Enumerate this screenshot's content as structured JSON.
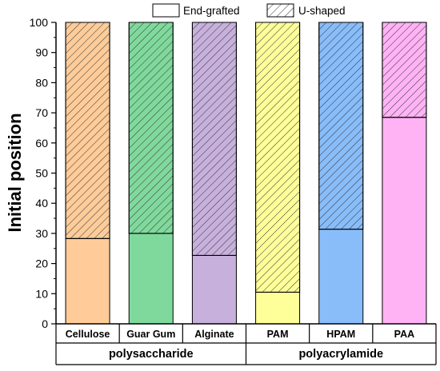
{
  "chart_data": {
    "type": "bar",
    "stacked": true,
    "ylabel": "Initial position",
    "ylim": [
      0,
      100
    ],
    "yticks": [
      0,
      10,
      20,
      30,
      40,
      50,
      60,
      70,
      80,
      90,
      100
    ],
    "categories": [
      "Cellulose",
      "Guar Gum",
      "Alginate",
      "PAM",
      "HPAM",
      "PAA"
    ],
    "groups": [
      {
        "label": "polysaccharide",
        "categories": [
          "Cellulose",
          "Guar Gum",
          "Alginate"
        ]
      },
      {
        "label": "polyacrylamide",
        "categories": [
          "PAM",
          "HPAM",
          "PAA"
        ]
      }
    ],
    "series": [
      {
        "name": "End-grafted",
        "pattern": "solid",
        "values": [
          28.3,
          30.0,
          22.7,
          10.5,
          31.4,
          68.5
        ]
      },
      {
        "name": "U-shaped",
        "pattern": "hatched",
        "values": [
          71.7,
          70.0,
          77.3,
          89.5,
          68.6,
          31.5
        ]
      }
    ],
    "colors": [
      "#ffcc99",
      "#80d99c",
      "#c7b1dc",
      "#ffff99",
      "#88bdfa",
      "#ffb3f5"
    ],
    "legend_position": "top"
  }
}
